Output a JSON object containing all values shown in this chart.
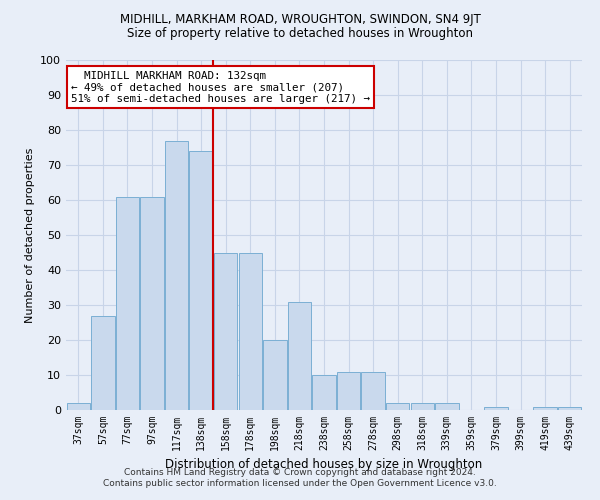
{
  "title": "MIDHILL, MARKHAM ROAD, WROUGHTON, SWINDON, SN4 9JT",
  "subtitle": "Size of property relative to detached houses in Wroughton",
  "xlabel": "Distribution of detached houses by size in Wroughton",
  "ylabel": "Number of detached properties",
  "bar_labels": [
    "37sqm",
    "57sqm",
    "77sqm",
    "97sqm",
    "117sqm",
    "138sqm",
    "158sqm",
    "178sqm",
    "198sqm",
    "218sqm",
    "238sqm",
    "258sqm",
    "278sqm",
    "298sqm",
    "318sqm",
    "339sqm",
    "359sqm",
    "379sqm",
    "399sqm",
    "419sqm",
    "439sqm"
  ],
  "bar_values": [
    2,
    27,
    61,
    61,
    77,
    74,
    45,
    45,
    20,
    31,
    10,
    11,
    11,
    2,
    2,
    2,
    0,
    1,
    0,
    1,
    1
  ],
  "bar_color": "#c9d9ed",
  "bar_edge_color": "#7bafd4",
  "grid_color": "#c8d4e8",
  "background_color": "#e8eef8",
  "vline_x": 5.5,
  "vline_color": "#cc0000",
  "annotation_text": "  MIDHILL MARKHAM ROAD: 132sqm  \n← 49% of detached houses are smaller (207)\n51% of semi-detached houses are larger (217) →",
  "annotation_box_color": "#ffffff",
  "annotation_box_edge": "#cc0000",
  "footer_line1": "Contains HM Land Registry data © Crown copyright and database right 2024.",
  "footer_line2": "Contains public sector information licensed under the Open Government Licence v3.0.",
  "ylim": [
    0,
    100
  ],
  "yticks": [
    0,
    10,
    20,
    30,
    40,
    50,
    60,
    70,
    80,
    90,
    100
  ]
}
